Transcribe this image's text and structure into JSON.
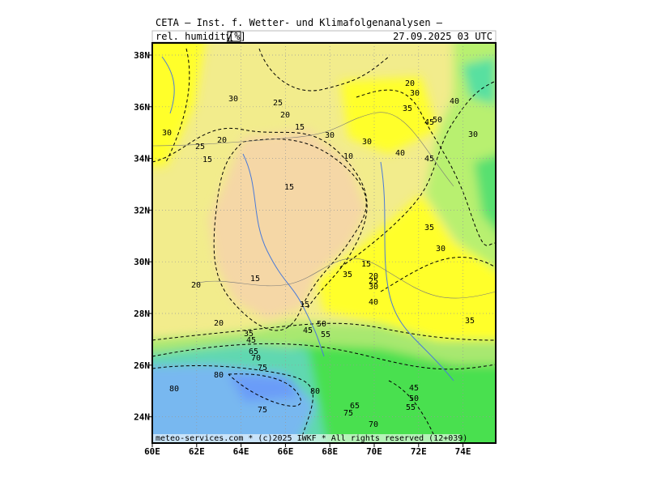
{
  "header": {
    "title": "CETA — Inst. f. Wetter- und Klimafolgenanalysen —",
    "variable": "rel. humidity",
    "unit": "[%]",
    "valid_time": "27.09.2025 03 UTC"
  },
  "map": {
    "lat_labels": [
      "38N",
      "36N",
      "34N",
      "32N",
      "30N",
      "28N",
      "26N",
      "24N"
    ],
    "lon_labels": [
      "60E",
      "62E",
      "64E",
      "66E",
      "68E",
      "70E",
      "72E",
      "74E"
    ],
    "contour_labels": [
      "30",
      "25",
      "20",
      "15",
      "30",
      "25",
      "20",
      "15",
      "30",
      "10",
      "30",
      "40",
      "45",
      "20",
      "30",
      "35",
      "50",
      "45",
      "40",
      "30",
      "15",
      "35",
      "30",
      "15",
      "20",
      "25",
      "30",
      "35",
      "40",
      "15",
      "20",
      "20",
      "15",
      "45",
      "50",
      "55",
      "35",
      "45",
      "65",
      "70",
      "75",
      "80",
      "80",
      "80",
      "75",
      "65",
      "75",
      "70",
      "45",
      "50",
      "55",
      "35"
    ],
    "footer": "meteo-services.com * (c)2025 IWKF * All rights reserved (12+039)"
  }
}
